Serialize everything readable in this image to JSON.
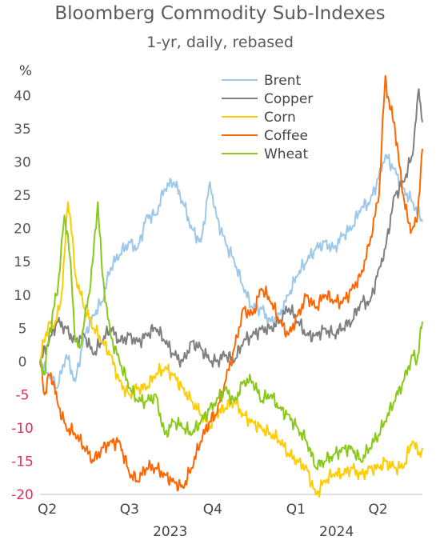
{
  "chart_data": {
    "type": "line",
    "title": "Bloomberg Commodity Sub-Indexes",
    "subtitle": "1-yr, daily, rebased",
    "ylabel": "%",
    "ylim": [
      -20,
      45
    ],
    "yticks": [
      -20,
      -15,
      -10,
      -5,
      0,
      5,
      10,
      15,
      20,
      25,
      30,
      35,
      40
    ],
    "negative_tick_color": "#e0305a",
    "positive_tick_color": "#555555",
    "x_range": [
      "2023-03-24",
      "2024-05-20"
    ],
    "quarter_ticks": [
      {
        "label": "Q2",
        "date": "2023-04-01"
      },
      {
        "label": "Q3",
        "date": "2023-07-01"
      },
      {
        "label": "Q4",
        "date": "2023-10-01"
      },
      {
        "label": "Q1",
        "date": "2024-01-01"
      },
      {
        "label": "Q2",
        "date": "2024-04-01"
      }
    ],
    "year_labels": [
      {
        "label": "2023",
        "date": "2023-08-15"
      },
      {
        "label": "2024",
        "date": "2024-02-15"
      }
    ],
    "grid": false,
    "legend": "top-right",
    "series": [
      {
        "name": "Brent",
        "color": "#9dc8ea",
        "points": [
          [
            "2023-03-24",
            0
          ],
          [
            "2023-04-03",
            -2
          ],
          [
            "2023-04-12",
            -4
          ],
          [
            "2023-04-22",
            1
          ],
          [
            "2023-05-02",
            -3
          ],
          [
            "2023-05-12",
            4
          ],
          [
            "2023-05-22",
            7
          ],
          [
            "2023-06-01",
            9
          ],
          [
            "2023-06-10",
            14
          ],
          [
            "2023-06-20",
            16
          ],
          [
            "2023-07-01",
            18
          ],
          [
            "2023-07-10",
            17
          ],
          [
            "2023-07-20",
            22
          ],
          [
            "2023-07-30",
            22
          ],
          [
            "2023-08-09",
            26
          ],
          [
            "2023-08-19",
            27
          ],
          [
            "2023-08-29",
            24
          ],
          [
            "2023-09-08",
            20
          ],
          [
            "2023-09-18",
            18
          ],
          [
            "2023-09-28",
            27
          ],
          [
            "2023-10-05",
            22
          ],
          [
            "2023-10-15",
            18
          ],
          [
            "2023-10-25",
            15
          ],
          [
            "2023-11-04",
            11
          ],
          [
            "2023-11-14",
            8
          ],
          [
            "2023-11-24",
            8
          ],
          [
            "2023-12-04",
            6
          ],
          [
            "2023-12-14",
            7
          ],
          [
            "2023-12-24",
            10
          ],
          [
            "2024-01-03",
            13
          ],
          [
            "2024-01-13",
            15
          ],
          [
            "2024-01-23",
            17
          ],
          [
            "2024-02-02",
            18
          ],
          [
            "2024-02-12",
            17
          ],
          [
            "2024-02-22",
            19
          ],
          [
            "2024-03-03",
            20
          ],
          [
            "2024-03-13",
            23
          ],
          [
            "2024-03-23",
            24
          ],
          [
            "2024-04-02",
            28
          ],
          [
            "2024-04-09",
            31
          ],
          [
            "2024-04-19",
            29
          ],
          [
            "2024-04-29",
            26
          ],
          [
            "2024-05-09",
            24
          ],
          [
            "2024-05-20",
            21
          ]
        ]
      },
      {
        "name": "Copper",
        "color": "#7f7f7f",
        "points": [
          [
            "2023-03-24",
            0
          ],
          [
            "2023-04-03",
            3
          ],
          [
            "2023-04-12",
            6
          ],
          [
            "2023-04-22",
            5
          ],
          [
            "2023-05-02",
            3
          ],
          [
            "2023-05-12",
            4
          ],
          [
            "2023-05-22",
            1
          ],
          [
            "2023-06-01",
            3
          ],
          [
            "2023-06-10",
            5
          ],
          [
            "2023-06-20",
            3
          ],
          [
            "2023-07-01",
            4
          ],
          [
            "2023-07-10",
            3
          ],
          [
            "2023-07-20",
            4
          ],
          [
            "2023-07-30",
            5
          ],
          [
            "2023-08-09",
            3
          ],
          [
            "2023-08-19",
            1
          ],
          [
            "2023-08-29",
            0
          ],
          [
            "2023-09-08",
            3
          ],
          [
            "2023-09-18",
            2
          ],
          [
            "2023-09-28",
            0
          ],
          [
            "2023-10-05",
            0
          ],
          [
            "2023-10-15",
            1
          ],
          [
            "2023-10-25",
            0
          ],
          [
            "2023-11-04",
            3
          ],
          [
            "2023-11-14",
            4
          ],
          [
            "2023-11-24",
            5
          ],
          [
            "2023-12-04",
            5
          ],
          [
            "2023-12-14",
            6
          ],
          [
            "2023-12-24",
            8
          ],
          [
            "2024-01-03",
            6
          ],
          [
            "2024-01-13",
            4
          ],
          [
            "2024-01-23",
            4
          ],
          [
            "2024-02-02",
            5
          ],
          [
            "2024-02-12",
            4
          ],
          [
            "2024-02-22",
            5
          ],
          [
            "2024-03-03",
            6
          ],
          [
            "2024-03-13",
            9
          ],
          [
            "2024-03-23",
            9
          ],
          [
            "2024-04-02",
            14
          ],
          [
            "2024-04-09",
            17
          ],
          [
            "2024-04-19",
            25
          ],
          [
            "2024-04-29",
            27
          ],
          [
            "2024-05-09",
            31
          ],
          [
            "2024-05-16",
            41
          ],
          [
            "2024-05-20",
            36
          ]
        ]
      },
      {
        "name": "Corn",
        "color": "#ffcc00",
        "points": [
          [
            "2023-03-24",
            0
          ],
          [
            "2023-03-30",
            4
          ],
          [
            "2023-04-03",
            6
          ],
          [
            "2023-04-08",
            5
          ],
          [
            "2023-04-12",
            7
          ],
          [
            "2023-04-16",
            9
          ],
          [
            "2023-04-20",
            16
          ],
          [
            "2023-04-24",
            24
          ],
          [
            "2023-04-27",
            21
          ],
          [
            "2023-05-02",
            13
          ],
          [
            "2023-05-12",
            8
          ],
          [
            "2023-05-22",
            5
          ],
          [
            "2023-06-01",
            3
          ],
          [
            "2023-06-10",
            1
          ],
          [
            "2023-06-20",
            -3
          ],
          [
            "2023-07-01",
            -5
          ],
          [
            "2023-07-10",
            -4
          ],
          [
            "2023-07-20",
            -4
          ],
          [
            "2023-07-30",
            -2
          ],
          [
            "2023-08-09",
            -1
          ],
          [
            "2023-08-19",
            -2
          ],
          [
            "2023-08-29",
            -4
          ],
          [
            "2023-09-08",
            -6
          ],
          [
            "2023-09-18",
            -8
          ],
          [
            "2023-09-28",
            -10
          ],
          [
            "2023-10-05",
            -8
          ],
          [
            "2023-10-15",
            -7
          ],
          [
            "2023-10-25",
            -6
          ],
          [
            "2023-11-04",
            -8
          ],
          [
            "2023-11-14",
            -9
          ],
          [
            "2023-11-24",
            -10
          ],
          [
            "2023-12-04",
            -11
          ],
          [
            "2023-12-14",
            -12
          ],
          [
            "2023-12-24",
            -14
          ],
          [
            "2024-01-03",
            -15
          ],
          [
            "2024-01-13",
            -16
          ],
          [
            "2024-01-23",
            -20
          ],
          [
            "2024-02-02",
            -18
          ],
          [
            "2024-02-12",
            -17
          ],
          [
            "2024-02-22",
            -17
          ],
          [
            "2024-03-03",
            -16
          ],
          [
            "2024-03-13",
            -17
          ],
          [
            "2024-03-23",
            -16
          ],
          [
            "2024-04-02",
            -16
          ],
          [
            "2024-04-09",
            -15
          ],
          [
            "2024-04-19",
            -16
          ],
          [
            "2024-04-29",
            -16
          ],
          [
            "2024-05-09",
            -12
          ],
          [
            "2024-05-16",
            -14
          ],
          [
            "2024-05-20",
            -13
          ]
        ]
      },
      {
        "name": "Coffee",
        "color": "#ff6600",
        "points": [
          [
            "2023-03-24",
            0
          ],
          [
            "2023-03-29",
            -5
          ],
          [
            "2023-04-03",
            -2
          ],
          [
            "2023-04-08",
            -3
          ],
          [
            "2023-04-12",
            -6
          ],
          [
            "2023-04-22",
            -10
          ],
          [
            "2023-05-02",
            -11
          ],
          [
            "2023-05-12",
            -13
          ],
          [
            "2023-05-22",
            -15
          ],
          [
            "2023-06-01",
            -13
          ],
          [
            "2023-06-10",
            -12
          ],
          [
            "2023-06-20",
            -12
          ],
          [
            "2023-07-01",
            -17
          ],
          [
            "2023-07-10",
            -18
          ],
          [
            "2023-07-20",
            -16
          ],
          [
            "2023-07-30",
            -16
          ],
          [
            "2023-08-09",
            -17
          ],
          [
            "2023-08-19",
            -18
          ],
          [
            "2023-08-29",
            -19
          ],
          [
            "2023-09-08",
            -16
          ],
          [
            "2023-09-18",
            -12
          ],
          [
            "2023-09-28",
            -9
          ],
          [
            "2023-10-05",
            -8
          ],
          [
            "2023-10-15",
            -3
          ],
          [
            "2023-10-25",
            2
          ],
          [
            "2023-11-04",
            8
          ],
          [
            "2023-11-14",
            7
          ],
          [
            "2023-11-24",
            11
          ],
          [
            "2023-12-04",
            9
          ],
          [
            "2023-12-14",
            6
          ],
          [
            "2023-12-24",
            4
          ],
          [
            "2024-01-03",
            7
          ],
          [
            "2024-01-13",
            10
          ],
          [
            "2024-01-23",
            8
          ],
          [
            "2024-02-02",
            10
          ],
          [
            "2024-02-12",
            9
          ],
          [
            "2024-02-22",
            9
          ],
          [
            "2024-03-03",
            11
          ],
          [
            "2024-03-13",
            13
          ],
          [
            "2024-03-23",
            18
          ],
          [
            "2024-04-02",
            25
          ],
          [
            "2024-04-09",
            43
          ],
          [
            "2024-04-14",
            38
          ],
          [
            "2024-04-19",
            36
          ],
          [
            "2024-04-24",
            30
          ],
          [
            "2024-04-29",
            25
          ],
          [
            "2024-05-04",
            21
          ],
          [
            "2024-05-09",
            20
          ],
          [
            "2024-05-14",
            21
          ],
          [
            "2024-05-20",
            32
          ]
        ]
      },
      {
        "name": "Wheat",
        "color": "#88c919",
        "points": [
          [
            "2023-03-24",
            0
          ],
          [
            "2023-03-29",
            -2
          ],
          [
            "2023-04-03",
            4
          ],
          [
            "2023-04-08",
            8
          ],
          [
            "2023-04-12",
            10
          ],
          [
            "2023-04-16",
            16
          ],
          [
            "2023-04-20",
            22
          ],
          [
            "2023-04-24",
            19
          ],
          [
            "2023-04-28",
            12
          ],
          [
            "2023-05-02",
            3
          ],
          [
            "2023-05-07",
            2
          ],
          [
            "2023-05-12",
            6
          ],
          [
            "2023-05-17",
            10
          ],
          [
            "2023-05-22",
            16
          ],
          [
            "2023-05-27",
            24
          ],
          [
            "2023-06-01",
            13
          ],
          [
            "2023-06-10",
            4
          ],
          [
            "2023-06-20",
            0
          ],
          [
            "2023-07-01",
            -4
          ],
          [
            "2023-07-10",
            -6
          ],
          [
            "2023-07-20",
            -6
          ],
          [
            "2023-07-30",
            -5
          ],
          [
            "2023-08-09",
            -11
          ],
          [
            "2023-08-19",
            -9
          ],
          [
            "2023-08-29",
            -10
          ],
          [
            "2023-09-08",
            -11
          ],
          [
            "2023-09-18",
            -9
          ],
          [
            "2023-09-28",
            -7
          ],
          [
            "2023-10-05",
            -6
          ],
          [
            "2023-10-15",
            -4
          ],
          [
            "2023-10-25",
            -6
          ],
          [
            "2023-11-04",
            -3
          ],
          [
            "2023-11-14",
            -3
          ],
          [
            "2023-11-24",
            -6
          ],
          [
            "2023-12-04",
            -5
          ],
          [
            "2023-12-14",
            -7
          ],
          [
            "2023-12-24",
            -8
          ],
          [
            "2024-01-03",
            -10
          ],
          [
            "2024-01-13",
            -12
          ],
          [
            "2024-01-23",
            -16
          ],
          [
            "2024-02-02",
            -15
          ],
          [
            "2024-02-12",
            -14
          ],
          [
            "2024-02-22",
            -13
          ],
          [
            "2024-03-03",
            -13
          ],
          [
            "2024-03-13",
            -15
          ],
          [
            "2024-03-23",
            -13
          ],
          [
            "2024-04-02",
            -11
          ],
          [
            "2024-04-09",
            -9
          ],
          [
            "2024-04-19",
            -6
          ],
          [
            "2024-04-29",
            -3
          ],
          [
            "2024-05-09",
            1
          ],
          [
            "2024-05-14",
            0
          ],
          [
            "2024-05-20",
            6
          ]
        ]
      }
    ]
  }
}
